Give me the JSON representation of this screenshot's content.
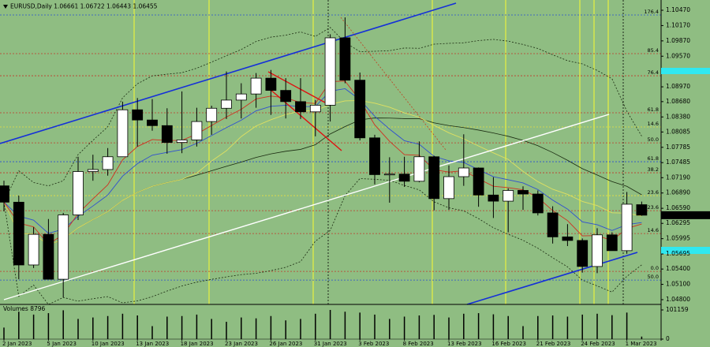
{
  "chart_data": {
    "type": "candlestick",
    "title": "EURUSD,Daily",
    "categories": [
      "2 Jan 2023",
      null,
      null,
      "5 Jan 2023",
      null,
      null,
      "10 Jan 2023",
      null,
      null,
      "13 Jan 2023",
      null,
      null,
      "18 Jan 2023",
      null,
      null,
      "23 Jan 2023",
      null,
      null,
      "26 Jan 2023",
      null,
      null,
      "31 Jan 2023",
      null,
      null,
      "3 Feb 2023",
      null,
      null,
      "8 Feb 2023",
      null,
      null,
      "13 Feb 2023",
      null,
      null,
      "16 Feb 2023",
      null,
      null,
      "21 Feb 2023",
      null,
      null,
      "24 Feb 2023",
      null,
      null,
      "1 Mar 2023",
      null
    ],
    "open": [
      1.0703,
      1.0671,
      1.0548,
      1.0608,
      1.052,
      1.0646,
      1.0731,
      1.0735,
      1.076,
      1.0852,
      1.0832,
      1.0821,
      1.0788,
      1.0793,
      1.0829,
      1.0855,
      1.0871,
      1.0883,
      1.0914,
      1.089,
      1.0868,
      1.0848,
      1.0861,
      1.0993,
      1.091,
      1.0797,
      1.0725,
      1.0726,
      1.0712,
      1.076,
      1.0678,
      1.0721,
      1.0738,
      1.0685,
      1.0673,
      1.0694,
      1.0687,
      1.065,
      1.0603,
      1.0596,
      1.0545,
      1.0607,
      1.0576,
      1.06661
    ],
    "high": [
      1.0713,
      1.0684,
      1.0622,
      1.0638,
      1.065,
      1.076,
      1.0764,
      1.0777,
      1.0868,
      1.0875,
      1.0873,
      1.0855,
      1.0888,
      1.0856,
      1.086,
      1.0927,
      1.0904,
      1.0924,
      1.093,
      1.0914,
      1.0914,
      1.0871,
      1.1,
      1.1033,
      1.0925,
      1.0803,
      1.0759,
      1.076,
      1.079,
      1.0762,
      1.0743,
      1.0804,
      1.0739,
      1.072,
      1.0698,
      1.0702,
      1.0694,
      1.0663,
      1.0628,
      1.06,
      1.062,
      1.0612,
      1.0691,
      1.06722
    ],
    "low": [
      1.0653,
      1.052,
      1.0542,
      1.0522,
      1.0484,
      1.0636,
      1.0713,
      1.0723,
      1.0762,
      1.078,
      1.0811,
      1.0766,
      1.0767,
      1.078,
      1.0803,
      1.0834,
      1.0835,
      1.0856,
      1.0842,
      1.0835,
      1.0834,
      1.08,
      1.0829,
      1.0904,
      1.0792,
      1.0706,
      1.067,
      1.0701,
      1.071,
      1.0655,
      1.0656,
      1.0703,
      1.0662,
      1.064,
      1.0612,
      1.0656,
      1.0645,
      1.059,
      1.0585,
      1.0533,
      1.0532,
      1.0579,
      1.057,
      1.06443
    ],
    "close": [
      1.0671,
      1.0548,
      1.0608,
      1.052,
      1.0646,
      1.0731,
      1.0735,
      1.076,
      1.0852,
      1.0832,
      1.0821,
      1.0788,
      1.0793,
      1.0829,
      1.0855,
      1.0871,
      1.0883,
      1.0914,
      1.089,
      1.0868,
      1.0848,
      1.0861,
      1.0993,
      1.091,
      1.0797,
      1.0725,
      1.0726,
      1.0712,
      1.076,
      1.0678,
      1.0721,
      1.0738,
      1.0685,
      1.0673,
      1.0694,
      1.0687,
      1.065,
      1.0603,
      1.0596,
      1.0545,
      1.0607,
      1.0576,
      1.0667,
      1.06455
    ],
    "volume_label": "Volumes",
    "volume": [
      40000,
      95000,
      85000,
      90000,
      100000,
      70000,
      75000,
      80000,
      88000,
      82000,
      45000,
      78000,
      80000,
      85000,
      70000,
      60000,
      75000,
      72000,
      80000,
      65000,
      70000,
      88000,
      101159,
      95000,
      92000,
      85000,
      70000,
      78000,
      82000,
      84000,
      75000,
      88000,
      90000,
      86000,
      80000,
      45000,
      80000,
      82000,
      78000,
      85000,
      88000,
      83000,
      92000,
      8796
    ],
    "ylim": [
      1.04707,
      1.10671
    ],
    "yticks": [
      {
        "value": 1.1047,
        "label": "1.10470"
      },
      {
        "value": 1.1017,
        "label": "1.10170"
      },
      {
        "value": 1.0987,
        "label": "1.09870"
      },
      {
        "value": 1.0957,
        "label": "1.09570"
      },
      {
        "value": 1.0897,
        "label": "1.08970"
      },
      {
        "value": 1.0868,
        "label": "1.08680"
      },
      {
        "value": 1.0838,
        "label": "1.08380"
      },
      1.08085,
      1.07785,
      1.07485,
      {
        "value": 1.0719,
        "label": "1.07190"
      },
      {
        "value": 1.0689,
        "label": "1.06890"
      },
      {
        "value": 1.0659,
        "label": "1.06590"
      },
      1.06295,
      1.05995,
      1.05695,
      {
        "value": 1.054,
        "label": "1.05400"
      },
      {
        "value": 1.051,
        "label": "1.05100"
      },
      {
        "value": 1.048,
        "label": "1.04800"
      }
    ],
    "vlim": [
      0,
      105000
    ],
    "vticks": [
      101159,
      0
    ],
    "levels": [
      {
        "label": "176.4",
        "value": 1.10377,
        "color": "#2a4fd0"
      },
      {
        "label": "85.4",
        "value": 1.0962,
        "color": "#c0392b"
      },
      {
        "label": "76.4",
        "value": 1.09187,
        "color": "#c0392b"
      },
      {
        "label": "61.8",
        "value": 1.08461,
        "color": "#c0392b"
      },
      {
        "label": "14.6",
        "value": 1.08183,
        "color": "#e8e040"
      },
      {
        "label": "50.0",
        "value": 1.07873,
        "color": "#c0392b"
      },
      {
        "label": "61.8",
        "value": 1.07503,
        "color": "#2a4fd0"
      },
      {
        "label": "38.2",
        "value": 1.07286,
        "color": "#c0392b"
      },
      {
        "label": "23.6",
        "value": 1.06838,
        "color": "#e8e040"
      },
      {
        "label": "23.6",
        "value": 1.06544,
        "color": "#c0392b"
      },
      {
        "label": "14.6",
        "value": 1.06096,
        "color": "#c0392b"
      },
      {
        "label": "0.0",
        "value": 1.05354,
        "color": "#c0392b"
      },
      {
        "label": "50.0",
        "value": 1.05184,
        "color": "#2a4fd0"
      }
    ],
    "colors": {
      "up": "#ffffff",
      "down": "#000000",
      "background": "#8fbd82"
    }
  }
}
